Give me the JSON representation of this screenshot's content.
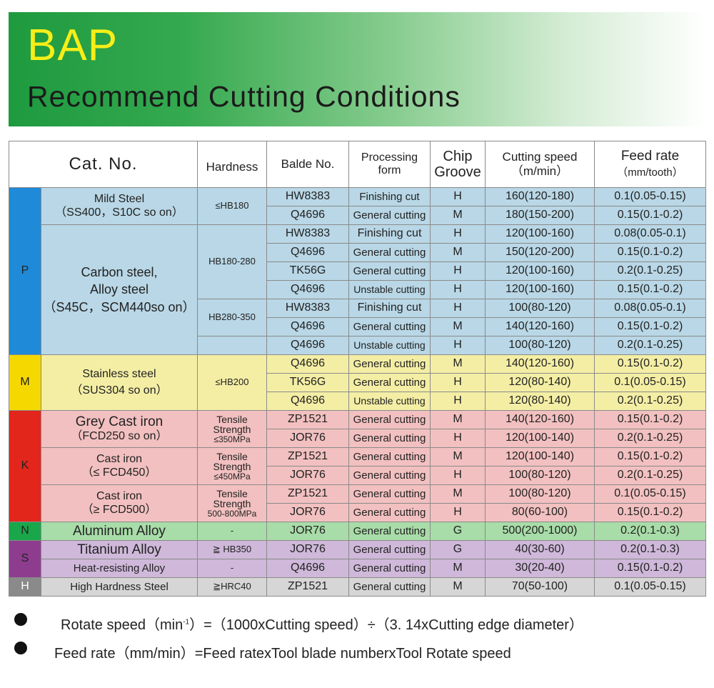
{
  "header": {
    "brand": "BAP",
    "subtitle": "Recommend Cutting Conditions"
  },
  "table": {
    "headers": {
      "cat": "Cat.  No.",
      "hardness": "Hardness",
      "blade": "Balde No.",
      "processing_1": "Processing",
      "processing_2": "form",
      "chip_1": "Chip",
      "chip_2": "Groove",
      "speed_1": "Cutting speed",
      "speed_2": "（m/min）",
      "feed_1": "Feed rate",
      "feed_2": "（mm/tooth）"
    },
    "colors": {
      "P": "#b9d7e6",
      "P_code": "#1f8ad8",
      "M": "#f4eea5",
      "M_code": "#f5d800",
      "K": "#f2c0c0",
      "K_code": "#e3261c",
      "N": "#a8dca8",
      "N_code": "#1aa64a",
      "S": "#cfb8da",
      "S_code": "#8e3d8e",
      "H": "#d6d6d6",
      "H_code": "#8a8a8a"
    },
    "groups": {
      "P": {
        "code": "P",
        "sub1": {
          "name_1": "Mild Steel",
          "name_2": "（SS400，S10C so on）",
          "hardness": "≤HB180"
        },
        "sub2": {
          "name_1": "Carbon steel,",
          "name_2": "Alloy steel",
          "name_3": "（S45C，SCM440so on）",
          "hardness_a": "HB180-280",
          "hardness_b": "HB280-350"
        },
        "rows": [
          {
            "blade": "HW8383",
            "form": "Finishing cut",
            "chip": "H",
            "speed": "160(120-180)",
            "feed": "0.1(0.05-0.15)"
          },
          {
            "blade": "Q4696",
            "form": "General cutting",
            "chip": "M",
            "speed": "180(150-200)",
            "feed": "0.15(0.1-0.2)"
          },
          {
            "blade": "HW8383",
            "form": "Finishing cut",
            "chip": "H",
            "speed": "120(100-160)",
            "feed": "0.08(0.05-0.1)"
          },
          {
            "blade": "Q4696",
            "form": "General cutting",
            "chip": "M",
            "speed": "150(120-200)",
            "feed": "0.15(0.1-0.2)"
          },
          {
            "blade": "TK56G",
            "form": "General cutting",
            "chip": "H",
            "speed": "120(100-160)",
            "feed": "0.2(0.1-0.25)"
          },
          {
            "blade": "Q4696",
            "form": "Unstable cutting",
            "chip": "H",
            "speed": "120(100-160)",
            "feed": "0.15(0.1-0.2)"
          },
          {
            "blade": "HW8383",
            "form": "Finishing cut",
            "chip": "H",
            "speed": "100(80-120)",
            "feed": "0.08(0.05-0.1)"
          },
          {
            "blade": "Q4696",
            "form": "General cutting",
            "chip": "M",
            "speed": "140(120-160)",
            "feed": "0.15(0.1-0.2)"
          },
          {
            "blade": "Q4696",
            "form": "Unstable cutting",
            "chip": "H",
            "speed": "100(80-120)",
            "feed": "0.2(0.1-0.25)"
          }
        ]
      },
      "M": {
        "code": "M",
        "name_1": "Stainless steel",
        "name_2": "（SUS304 so on）",
        "hardness": "≤HB200",
        "rows": [
          {
            "blade": "Q4696",
            "form": "General cutting",
            "chip": "M",
            "speed": "140(120-160)",
            "feed": "0.15(0.1-0.2)"
          },
          {
            "blade": "TK56G",
            "form": "General cutting",
            "chip": "H",
            "speed": "120(80-140)",
            "feed": "0.1(0.05-0.15)"
          },
          {
            "blade": "Q4696",
            "form": "Unstable cutting",
            "chip": "H",
            "speed": "120(80-140)",
            "feed": "0.2(0.1-0.25)"
          }
        ]
      },
      "K": {
        "code": "K",
        "sub1": {
          "name_1": "Grey Cast iron",
          "name_2": "（FCD250 so on）",
          "h1": "Tensile",
          "h2": "Strength",
          "h3": "≤350MPa"
        },
        "sub2": {
          "name_1": "Cast iron",
          "name_2": "（≤ FCD450）",
          "h1": "Tensile",
          "h2": "Strength",
          "h3": "≤450MPa"
        },
        "sub3": {
          "name_1": "Cast iron",
          "name_2": "（≥ FCD500）",
          "h1": "Tensile",
          "h2": "Strength",
          "h3": "500-800MPa"
        },
        "rows": [
          {
            "blade": "ZP1521",
            "form": "General cutting",
            "chip": "M",
            "speed": "140(120-160)",
            "feed": "0.15(0.1-0.2)"
          },
          {
            "blade": "JOR76",
            "form": "General cutting",
            "chip": "H",
            "speed": "120(100-140)",
            "feed": "0.2(0.1-0.25)"
          },
          {
            "blade": "ZP1521",
            "form": "General cutting",
            "chip": "M",
            "speed": "120(100-140)",
            "feed": "0.15(0.1-0.2)"
          },
          {
            "blade": "JOR76",
            "form": "General cutting",
            "chip": "H",
            "speed": "100(80-120)",
            "feed": "0.2(0.1-0.25)"
          },
          {
            "blade": "ZP1521",
            "form": "General cutting",
            "chip": "M",
            "speed": "100(80-120)",
            "feed": "0.1(0.05-0.15)"
          },
          {
            "blade": "JOR76",
            "form": "General cutting",
            "chip": "H",
            "speed": "80(60-100)",
            "feed": "0.15(0.1-0.2)"
          }
        ]
      },
      "N": {
        "code": "N",
        "name": "Aluminum Alloy",
        "hardness": "-",
        "row": {
          "blade": "JOR76",
          "form": "General cutting",
          "chip": "G",
          "speed": "500(200-1000)",
          "feed": "0.2(0.1-0.3)"
        }
      },
      "S": {
        "code": "S",
        "name_1": "Titanium Alloy",
        "hardness_1": "≧ HB350",
        "row1": {
          "blade": "JOR76",
          "form": "General cutting",
          "chip": "G",
          "speed": "40(30-60)",
          "feed": "0.2(0.1-0.3)"
        },
        "name_2": "Heat-resisting Alloy",
        "hardness_2": "-",
        "row2": {
          "blade": "Q4696",
          "form": "General cutting",
          "chip": "M",
          "speed": "30(20-40)",
          "feed": "0.15(0.1-0.2)"
        }
      },
      "H": {
        "code": "H",
        "name": "High Hardness Steel",
        "hardness": "≧HRC40",
        "row": {
          "blade": "ZP1521",
          "form": "General cutting",
          "chip": "M",
          "speed": "70(50-100)",
          "feed": "0.1(0.05-0.15)"
        }
      }
    }
  },
  "notes": {
    "rotate_a": "Rotate speed（min",
    "rotate_sup": "-1",
    "rotate_b": "）=（1000xCutting speed）÷（3. 14xCutting edge diameter）",
    "feed": "Feed rate（mm/min）=Feed ratexTool blade numberxTool Rotate speed"
  }
}
